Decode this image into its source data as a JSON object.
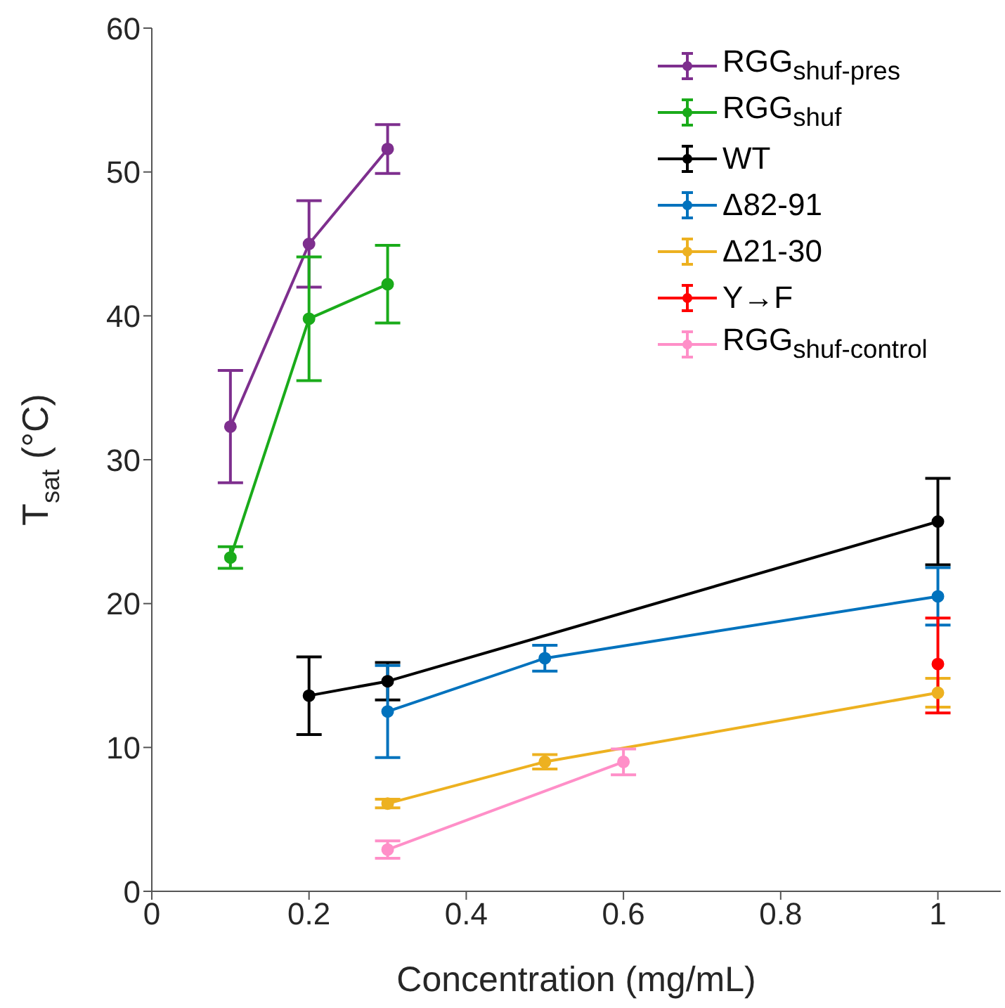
{
  "chart_data": {
    "type": "line",
    "xlabel": "Concentration (mg/mL)",
    "ylabel": "T$_{sat}$ (°C)",
    "xlim": [
      0,
      1.08
    ],
    "xticks": [
      0,
      0.2,
      0.4,
      0.6,
      0.8,
      1
    ],
    "ylim": [
      0,
      60
    ],
    "yticks": [
      0,
      10,
      20,
      30,
      40,
      50,
      60
    ],
    "grid": false,
    "legend": "top right",
    "marker": "circle",
    "line_style": "solid",
    "series": [
      {
        "name": "RGG$_{shuf-pres}$",
        "color": "#7e2f8e",
        "x": [
          0.1,
          0.2,
          0.3
        ],
        "values": [
          32.3,
          45.0,
          51.6
        ],
        "errors": [
          3.9,
          3.0,
          1.7
        ]
      },
      {
        "name": "RGG$_{shuf}$",
        "color": "#1aab1a",
        "x": [
          0.1,
          0.2,
          0.3
        ],
        "values": [
          23.2,
          39.8,
          42.2
        ],
        "errors": [
          0.75,
          4.3,
          2.7
        ]
      },
      {
        "name": "WT",
        "color": "#000000",
        "x": [
          0.2,
          0.3,
          1
        ],
        "values": [
          13.6,
          14.6,
          25.7
        ],
        "errors": [
          2.7,
          1.3,
          3.0
        ]
      },
      {
        "name": "Δ82-91",
        "color": "#0072bd",
        "x": [
          0.3,
          0.5,
          1
        ],
        "values": [
          12.5,
          16.2,
          20.5
        ],
        "errors": [
          3.2,
          0.9,
          2.0
        ]
      },
      {
        "name": "Δ21-30",
        "color": "#edb120",
        "x": [
          0.3,
          0.5,
          1
        ],
        "values": [
          6.1,
          9.0,
          13.8
        ],
        "errors": [
          0.3,
          0.5,
          1.0
        ]
      },
      {
        "name": "Y→F",
        "color": "#ff0000",
        "x": [
          1
        ],
        "values": [
          15.8
        ],
        "errors": [
          [
            12.4,
            19.0
          ]
        ]
      },
      {
        "name": "RGG$_{shuf-control}$",
        "color": "#ff8fc8",
        "x": [
          0.3,
          0.6
        ],
        "values": [
          2.9,
          9.0
        ],
        "errors": [
          0.6,
          0.9
        ]
      }
    ]
  }
}
